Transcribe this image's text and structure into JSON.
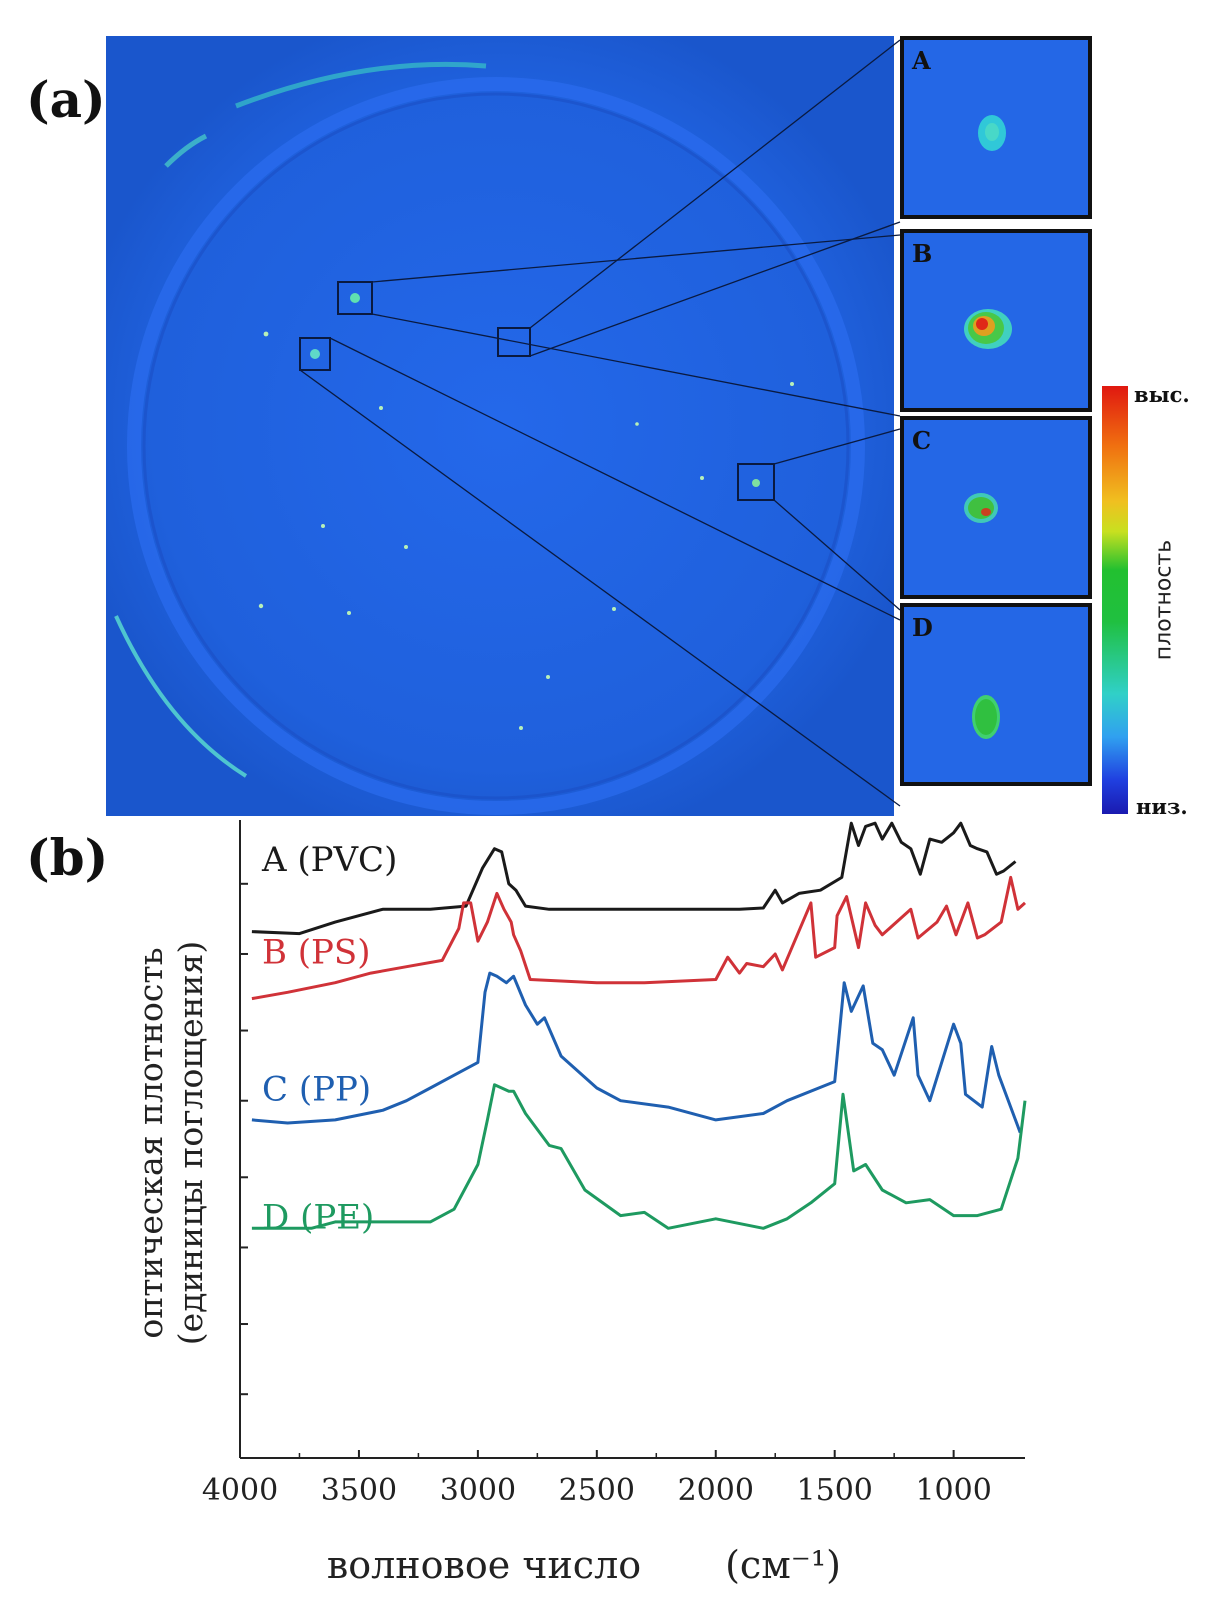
{
  "panels": {
    "a_label": "(a)",
    "b_label": "(b)"
  },
  "insets": [
    {
      "letter": "A",
      "polymer": "PVC"
    },
    {
      "letter": "B",
      "polymer": "PS"
    },
    {
      "letter": "C",
      "polymer": "PP"
    },
    {
      "letter": "D",
      "polymer": "PE"
    }
  ],
  "colorbar": {
    "high": "выс.",
    "low": "низ.",
    "title": "плотность"
  },
  "colors": {
    "petri_background": "#1f62e0",
    "pvc": "#1a1a1a",
    "ps": "#d03238",
    "pp": "#1f5fb0",
    "pe": "#1e9a60"
  },
  "chart_data": {
    "type": "line",
    "xlabel": "волновое число",
    "xunit": "(см⁻¹)",
    "ylabel_line1": "оптическая плотность",
    "ylabel_line2": "(единицы поглощения)",
    "xlim": [
      4000,
      700
    ],
    "xticks": [
      4000,
      3500,
      3000,
      2500,
      2000,
      1500,
      1000
    ],
    "ylim": [
      0,
      10
    ],
    "series": [
      {
        "name": "A (PVC)",
        "color": "#1a1a1a",
        "points": [
          [
            3950,
            8.25
          ],
          [
            3750,
            8.22
          ],
          [
            3600,
            8.4
          ],
          [
            3400,
            8.6
          ],
          [
            3200,
            8.6
          ],
          [
            3050,
            8.65
          ],
          [
            2980,
            9.25
          ],
          [
            2930,
            9.55
          ],
          [
            2900,
            9.5
          ],
          [
            2870,
            9.0
          ],
          [
            2840,
            8.9
          ],
          [
            2800,
            8.65
          ],
          [
            2700,
            8.6
          ],
          [
            2500,
            8.6
          ],
          [
            2200,
            8.6
          ],
          [
            1900,
            8.6
          ],
          [
            1800,
            8.62
          ],
          [
            1750,
            8.9
          ],
          [
            1720,
            8.7
          ],
          [
            1650,
            8.85
          ],
          [
            1560,
            8.9
          ],
          [
            1470,
            9.1
          ],
          [
            1430,
            9.95
          ],
          [
            1400,
            9.6
          ],
          [
            1370,
            9.9
          ],
          [
            1330,
            9.95
          ],
          [
            1300,
            9.7
          ],
          [
            1260,
            9.95
          ],
          [
            1220,
            9.65
          ],
          [
            1180,
            9.55
          ],
          [
            1140,
            9.15
          ],
          [
            1100,
            9.7
          ],
          [
            1050,
            9.65
          ],
          [
            1000,
            9.8
          ],
          [
            970,
            9.95
          ],
          [
            930,
            9.6
          ],
          [
            900,
            9.55
          ],
          [
            860,
            9.5
          ],
          [
            820,
            9.15
          ],
          [
            790,
            9.2
          ],
          [
            740,
            9.35
          ]
        ]
      },
      {
        "name": "B (PS)",
        "color": "#d03238",
        "points": [
          [
            3950,
            7.2
          ],
          [
            3800,
            7.3
          ],
          [
            3600,
            7.45
          ],
          [
            3450,
            7.6
          ],
          [
            3300,
            7.7
          ],
          [
            3150,
            7.8
          ],
          [
            3080,
            8.3
          ],
          [
            3060,
            8.7
          ],
          [
            3030,
            8.7
          ],
          [
            3000,
            8.1
          ],
          [
            2960,
            8.4
          ],
          [
            2920,
            8.85
          ],
          [
            2890,
            8.6
          ],
          [
            2860,
            8.4
          ],
          [
            2850,
            8.2
          ],
          [
            2820,
            7.95
          ],
          [
            2780,
            7.5
          ],
          [
            2500,
            7.45
          ],
          [
            2300,
            7.45
          ],
          [
            2000,
            7.5
          ],
          [
            1950,
            7.85
          ],
          [
            1900,
            7.6
          ],
          [
            1870,
            7.75
          ],
          [
            1800,
            7.7
          ],
          [
            1750,
            7.9
          ],
          [
            1720,
            7.65
          ],
          [
            1600,
            8.7
          ],
          [
            1580,
            7.85
          ],
          [
            1500,
            8.0
          ],
          [
            1490,
            8.5
          ],
          [
            1450,
            8.8
          ],
          [
            1400,
            8.0
          ],
          [
            1370,
            8.7
          ],
          [
            1330,
            8.35
          ],
          [
            1300,
            8.2
          ],
          [
            1180,
            8.6
          ],
          [
            1150,
            8.15
          ],
          [
            1070,
            8.4
          ],
          [
            1030,
            8.65
          ],
          [
            990,
            8.2
          ],
          [
            940,
            8.7
          ],
          [
            900,
            8.15
          ],
          [
            870,
            8.2
          ],
          [
            800,
            8.4
          ],
          [
            760,
            9.1
          ],
          [
            730,
            8.6
          ],
          [
            700,
            8.7
          ]
        ]
      },
      {
        "name": "C (PP)",
        "color": "#1f5fb0",
        "points": [
          [
            3950,
            5.3
          ],
          [
            3800,
            5.25
          ],
          [
            3600,
            5.3
          ],
          [
            3400,
            5.45
          ],
          [
            3300,
            5.6
          ],
          [
            3200,
            5.8
          ],
          [
            3100,
            6.0
          ],
          [
            3000,
            6.2
          ],
          [
            2970,
            7.3
          ],
          [
            2950,
            7.6
          ],
          [
            2920,
            7.55
          ],
          [
            2880,
            7.45
          ],
          [
            2850,
            7.55
          ],
          [
            2800,
            7.1
          ],
          [
            2750,
            6.8
          ],
          [
            2720,
            6.9
          ],
          [
            2650,
            6.3
          ],
          [
            2500,
            5.8
          ],
          [
            2400,
            5.6
          ],
          [
            2200,
            5.5
          ],
          [
            2000,
            5.3
          ],
          [
            1800,
            5.4
          ],
          [
            1700,
            5.6
          ],
          [
            1500,
            5.9
          ],
          [
            1460,
            7.45
          ],
          [
            1430,
            7.0
          ],
          [
            1380,
            7.4
          ],
          [
            1340,
            6.5
          ],
          [
            1300,
            6.4
          ],
          [
            1250,
            6.0
          ],
          [
            1170,
            6.9
          ],
          [
            1150,
            6.0
          ],
          [
            1100,
            5.6
          ],
          [
            1000,
            6.8
          ],
          [
            970,
            6.5
          ],
          [
            950,
            5.7
          ],
          [
            880,
            5.5
          ],
          [
            840,
            6.45
          ],
          [
            810,
            6.0
          ],
          [
            760,
            5.5
          ],
          [
            720,
            5.1
          ]
        ]
      },
      {
        "name": "D (PE)",
        "color": "#1e9a60",
        "points": [
          [
            3950,
            3.6
          ],
          [
            3800,
            3.6
          ],
          [
            3700,
            3.6
          ],
          [
            3600,
            3.7
          ],
          [
            3400,
            3.7
          ],
          [
            3200,
            3.7
          ],
          [
            3100,
            3.9
          ],
          [
            3000,
            4.6
          ],
          [
            2960,
            5.3
          ],
          [
            2930,
            5.85
          ],
          [
            2900,
            5.8
          ],
          [
            2870,
            5.75
          ],
          [
            2850,
            5.75
          ],
          [
            2800,
            5.4
          ],
          [
            2700,
            4.9
          ],
          [
            2650,
            4.85
          ],
          [
            2550,
            4.2
          ],
          [
            2400,
            3.8
          ],
          [
            2300,
            3.85
          ],
          [
            2200,
            3.6
          ],
          [
            2000,
            3.75
          ],
          [
            1800,
            3.6
          ],
          [
            1700,
            3.75
          ],
          [
            1600,
            4.0
          ],
          [
            1500,
            4.3
          ],
          [
            1465,
            5.7
          ],
          [
            1420,
            4.5
          ],
          [
            1370,
            4.6
          ],
          [
            1300,
            4.2
          ],
          [
            1200,
            4.0
          ],
          [
            1100,
            4.05
          ],
          [
            1000,
            3.8
          ],
          [
            900,
            3.8
          ],
          [
            800,
            3.9
          ],
          [
            730,
            4.7
          ],
          [
            700,
            5.6
          ]
        ]
      }
    ],
    "series_labels": [
      "A (PVC)",
      "B (PS)",
      "C (PP)",
      "D (PE)"
    ]
  }
}
